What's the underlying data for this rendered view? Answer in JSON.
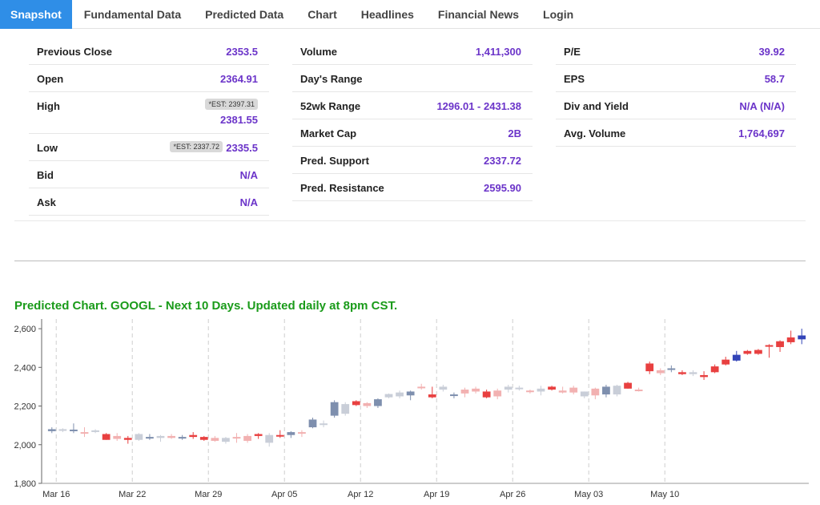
{
  "tabs": [
    {
      "label": "Snapshot",
      "active": true
    },
    {
      "label": "Fundamental Data"
    },
    {
      "label": "Predicted Data"
    },
    {
      "label": "Chart"
    },
    {
      "label": "Headlines"
    },
    {
      "label": "Financial News"
    },
    {
      "label": "Login"
    }
  ],
  "snapshot": {
    "col1": {
      "previous_close": {
        "label": "Previous Close",
        "value": "2353.5"
      },
      "open": {
        "label": "Open",
        "value": "2364.91"
      },
      "high": {
        "label": "High",
        "est": "*EST: 2397.31",
        "value": "2381.55"
      },
      "low": {
        "label": "Low",
        "est": "*EST: 2337.72",
        "value": "2335.5"
      },
      "bid": {
        "label": "Bid",
        "value": "N/A"
      },
      "ask": {
        "label": "Ask",
        "value": "N/A"
      }
    },
    "col2": {
      "volume": {
        "label": "Volume",
        "value": "1,411,300"
      },
      "days_range": {
        "label": "Day's Range",
        "value": ""
      },
      "wk52_range": {
        "label": "52wk Range",
        "value": "1296.01 - 2431.38"
      },
      "market_cap": {
        "label": "Market Cap",
        "value": "2B"
      },
      "pred_support": {
        "label": "Pred. Support",
        "value": "2337.72"
      },
      "pred_resistance": {
        "label": "Pred. Resistance",
        "value": "2595.90"
      }
    },
    "col3": {
      "pe": {
        "label": "P/E",
        "value": "39.92"
      },
      "eps": {
        "label": "EPS",
        "value": "58.7"
      },
      "div_yield": {
        "label": "Div and Yield",
        "value": "N/A (N/A)"
      },
      "avg_volume": {
        "label": "Avg. Volume",
        "value": "1,764,697"
      }
    }
  },
  "chart_title": "Predicted Chart. GOOGL - Next 10 Days. Updated daily at 8pm CST.",
  "colors": {
    "tab_active": "#2f8ee7",
    "value_text": "#6b34c9",
    "chart_title": "#1a9b1a",
    "hist_up": "#c9ced8",
    "hist_down": "#f2b1b1",
    "pred_up": "#7e8fae",
    "pred_down": "#e84040",
    "forecast": "#3344b8"
  },
  "chart_data": {
    "type": "candlestick",
    "title": "",
    "xlabel": "",
    "ylabel": "",
    "ylim": [
      1800,
      2650
    ],
    "yticks": [
      "1,800",
      "2,000",
      "2,200",
      "2,400",
      "2,600"
    ],
    "ytick_values": [
      1800,
      2000,
      2200,
      2400,
      2600
    ],
    "xticks": [
      "Mar 16",
      "Mar 22",
      "Mar 29",
      "Apr 05",
      "Apr 12",
      "Apr 19",
      "Apr 26",
      "May 03",
      "May 10"
    ],
    "grid": "vertical dashed",
    "candles": [
      {
        "o": 2070,
        "h": 2090,
        "l": 2060,
        "c": 2080,
        "t": "pu"
      },
      {
        "o": 2075,
        "h": 2085,
        "l": 2065,
        "c": 2080,
        "t": "hu"
      },
      {
        "o": 2075,
        "h": 2110,
        "l": 2060,
        "c": 2078,
        "t": "pu"
      },
      {
        "o": 2065,
        "h": 2090,
        "l": 2040,
        "c": 2060,
        "t": "hd"
      },
      {
        "o": 2070,
        "h": 2080,
        "l": 2060,
        "c": 2074,
        "t": "hu"
      },
      {
        "o": 2055,
        "h": 2060,
        "l": 2025,
        "c": 2025,
        "t": "pd"
      },
      {
        "o": 2045,
        "h": 2060,
        "l": 2020,
        "c": 2030,
        "t": "hd"
      },
      {
        "o": 2035,
        "h": 2045,
        "l": 2005,
        "c": 2025,
        "t": "pd"
      },
      {
        "o": 2025,
        "h": 2060,
        "l": 2020,
        "c": 2055,
        "t": "hu"
      },
      {
        "o": 2035,
        "h": 2055,
        "l": 2025,
        "c": 2040,
        "t": "pu"
      },
      {
        "o": 2035,
        "h": 2050,
        "l": 2015,
        "c": 2045,
        "t": "hu"
      },
      {
        "o": 2045,
        "h": 2055,
        "l": 2030,
        "c": 2035,
        "t": "hd"
      },
      {
        "o": 2035,
        "h": 2050,
        "l": 2025,
        "c": 2040,
        "t": "pu"
      },
      {
        "o": 2050,
        "h": 2065,
        "l": 2030,
        "c": 2040,
        "t": "pd"
      },
      {
        "o": 2040,
        "h": 2045,
        "l": 2020,
        "c": 2025,
        "t": "pd"
      },
      {
        "o": 2035,
        "h": 2045,
        "l": 2015,
        "c": 2020,
        "t": "hd"
      },
      {
        "o": 2015,
        "h": 2040,
        "l": 2005,
        "c": 2035,
        "t": "hu"
      },
      {
        "o": 2035,
        "h": 2060,
        "l": 2010,
        "c": 2040,
        "t": "hd"
      },
      {
        "o": 2020,
        "h": 2055,
        "l": 2010,
        "c": 2045,
        "t": "hd"
      },
      {
        "o": 2055,
        "h": 2060,
        "l": 2030,
        "c": 2045,
        "t": "pd"
      },
      {
        "o": 2010,
        "h": 2060,
        "l": 1990,
        "c": 2050,
        "t": "hu"
      },
      {
        "o": 2045,
        "h": 2075,
        "l": 2035,
        "c": 2050,
        "t": "pd"
      },
      {
        "o": 2050,
        "h": 2070,
        "l": 2035,
        "c": 2065,
        "t": "pu"
      },
      {
        "o": 2065,
        "h": 2075,
        "l": 2040,
        "c": 2060,
        "t": "hd"
      },
      {
        "o": 2090,
        "h": 2140,
        "l": 2085,
        "c": 2130,
        "t": "pu"
      },
      {
        "o": 2110,
        "h": 2125,
        "l": 2090,
        "c": 2110,
        "t": "hu"
      },
      {
        "o": 2150,
        "h": 2230,
        "l": 2140,
        "c": 2220,
        "t": "pu"
      },
      {
        "o": 2160,
        "h": 2220,
        "l": 2150,
        "c": 2210,
        "t": "hu"
      },
      {
        "o": 2225,
        "h": 2230,
        "l": 2200,
        "c": 2205,
        "t": "pd"
      },
      {
        "o": 2200,
        "h": 2220,
        "l": 2190,
        "c": 2215,
        "t": "hd"
      },
      {
        "o": 2200,
        "h": 2240,
        "l": 2190,
        "c": 2235,
        "t": "pu"
      },
      {
        "o": 2245,
        "h": 2265,
        "l": 2240,
        "c": 2262,
        "t": "hu"
      },
      {
        "o": 2250,
        "h": 2280,
        "l": 2240,
        "c": 2270,
        "t": "hu"
      },
      {
        "o": 2255,
        "h": 2280,
        "l": 2230,
        "c": 2275,
        "t": "pu"
      },
      {
        "o": 2300,
        "h": 2315,
        "l": 2285,
        "c": 2295,
        "t": "hd"
      },
      {
        "o": 2260,
        "h": 2300,
        "l": 2240,
        "c": 2245,
        "t": "pd"
      },
      {
        "o": 2285,
        "h": 2310,
        "l": 2275,
        "c": 2300,
        "t": "hu"
      },
      {
        "o": 2255,
        "h": 2270,
        "l": 2240,
        "c": 2260,
        "t": "pu"
      },
      {
        "o": 2265,
        "h": 2295,
        "l": 2245,
        "c": 2285,
        "t": "hd"
      },
      {
        "o": 2275,
        "h": 2300,
        "l": 2265,
        "c": 2290,
        "t": "hd"
      },
      {
        "o": 2275,
        "h": 2285,
        "l": 2240,
        "c": 2245,
        "t": "pd"
      },
      {
        "o": 2250,
        "h": 2290,
        "l": 2235,
        "c": 2280,
        "t": "hd"
      },
      {
        "o": 2285,
        "h": 2310,
        "l": 2270,
        "c": 2300,
        "t": "hu"
      },
      {
        "o": 2295,
        "h": 2305,
        "l": 2280,
        "c": 2290,
        "t": "hu"
      },
      {
        "o": 2275,
        "h": 2285,
        "l": 2265,
        "c": 2280,
        "t": "hd"
      },
      {
        "o": 2275,
        "h": 2305,
        "l": 2255,
        "c": 2290,
        "t": "hu"
      },
      {
        "o": 2300,
        "h": 2305,
        "l": 2280,
        "c": 2285,
        "t": "pd"
      },
      {
        "o": 2280,
        "h": 2300,
        "l": 2265,
        "c": 2270,
        "t": "hd"
      },
      {
        "o": 2270,
        "h": 2305,
        "l": 2260,
        "c": 2295,
        "t": "hd"
      },
      {
        "o": 2250,
        "h": 2275,
        "l": 2240,
        "c": 2275,
        "t": "hu"
      },
      {
        "o": 2255,
        "h": 2295,
        "l": 2235,
        "c": 2290,
        "t": "hd"
      },
      {
        "o": 2260,
        "h": 2310,
        "l": 2245,
        "c": 2300,
        "t": "pu"
      },
      {
        "o": 2260,
        "h": 2310,
        "l": 2250,
        "c": 2305,
        "t": "hu"
      },
      {
        "o": 2320,
        "h": 2325,
        "l": 2290,
        "c": 2290,
        "t": "pd"
      },
      {
        "o": 2280,
        "h": 2295,
        "l": 2275,
        "c": 2285,
        "t": "hd"
      },
      {
        "o": 2420,
        "h": 2430,
        "l": 2365,
        "c": 2380,
        "t": "pd"
      },
      {
        "o": 2370,
        "h": 2395,
        "l": 2360,
        "c": 2385,
        "t": "hd"
      },
      {
        "o": 2390,
        "h": 2410,
        "l": 2375,
        "c": 2395,
        "t": "pu"
      },
      {
        "o": 2375,
        "h": 2385,
        "l": 2360,
        "c": 2365,
        "t": "pd"
      },
      {
        "o": 2365,
        "h": 2385,
        "l": 2355,
        "c": 2375,
        "t": "hu"
      },
      {
        "o": 2360,
        "h": 2380,
        "l": 2335,
        "c": 2350,
        "t": "pd"
      },
      {
        "o": 2405,
        "h": 2415,
        "l": 2370,
        "c": 2375,
        "t": "pd"
      },
      {
        "o": 2440,
        "h": 2455,
        "l": 2410,
        "c": 2415,
        "t": "pd"
      },
      {
        "o": 2435,
        "h": 2485,
        "l": 2430,
        "c": 2465,
        "t": "f"
      },
      {
        "o": 2485,
        "h": 2490,
        "l": 2465,
        "c": 2470,
        "t": "pd"
      },
      {
        "o": 2490,
        "h": 2495,
        "l": 2465,
        "c": 2470,
        "t": "pd"
      },
      {
        "o": 2515,
        "h": 2520,
        "l": 2450,
        "c": 2510,
        "t": "pd"
      },
      {
        "o": 2535,
        "h": 2540,
        "l": 2480,
        "c": 2505,
        "t": "pd"
      },
      {
        "o": 2555,
        "h": 2590,
        "l": 2520,
        "c": 2530,
        "t": "pd"
      },
      {
        "o": 2545,
        "h": 2600,
        "l": 2520,
        "c": 2565,
        "t": "f"
      }
    ]
  }
}
